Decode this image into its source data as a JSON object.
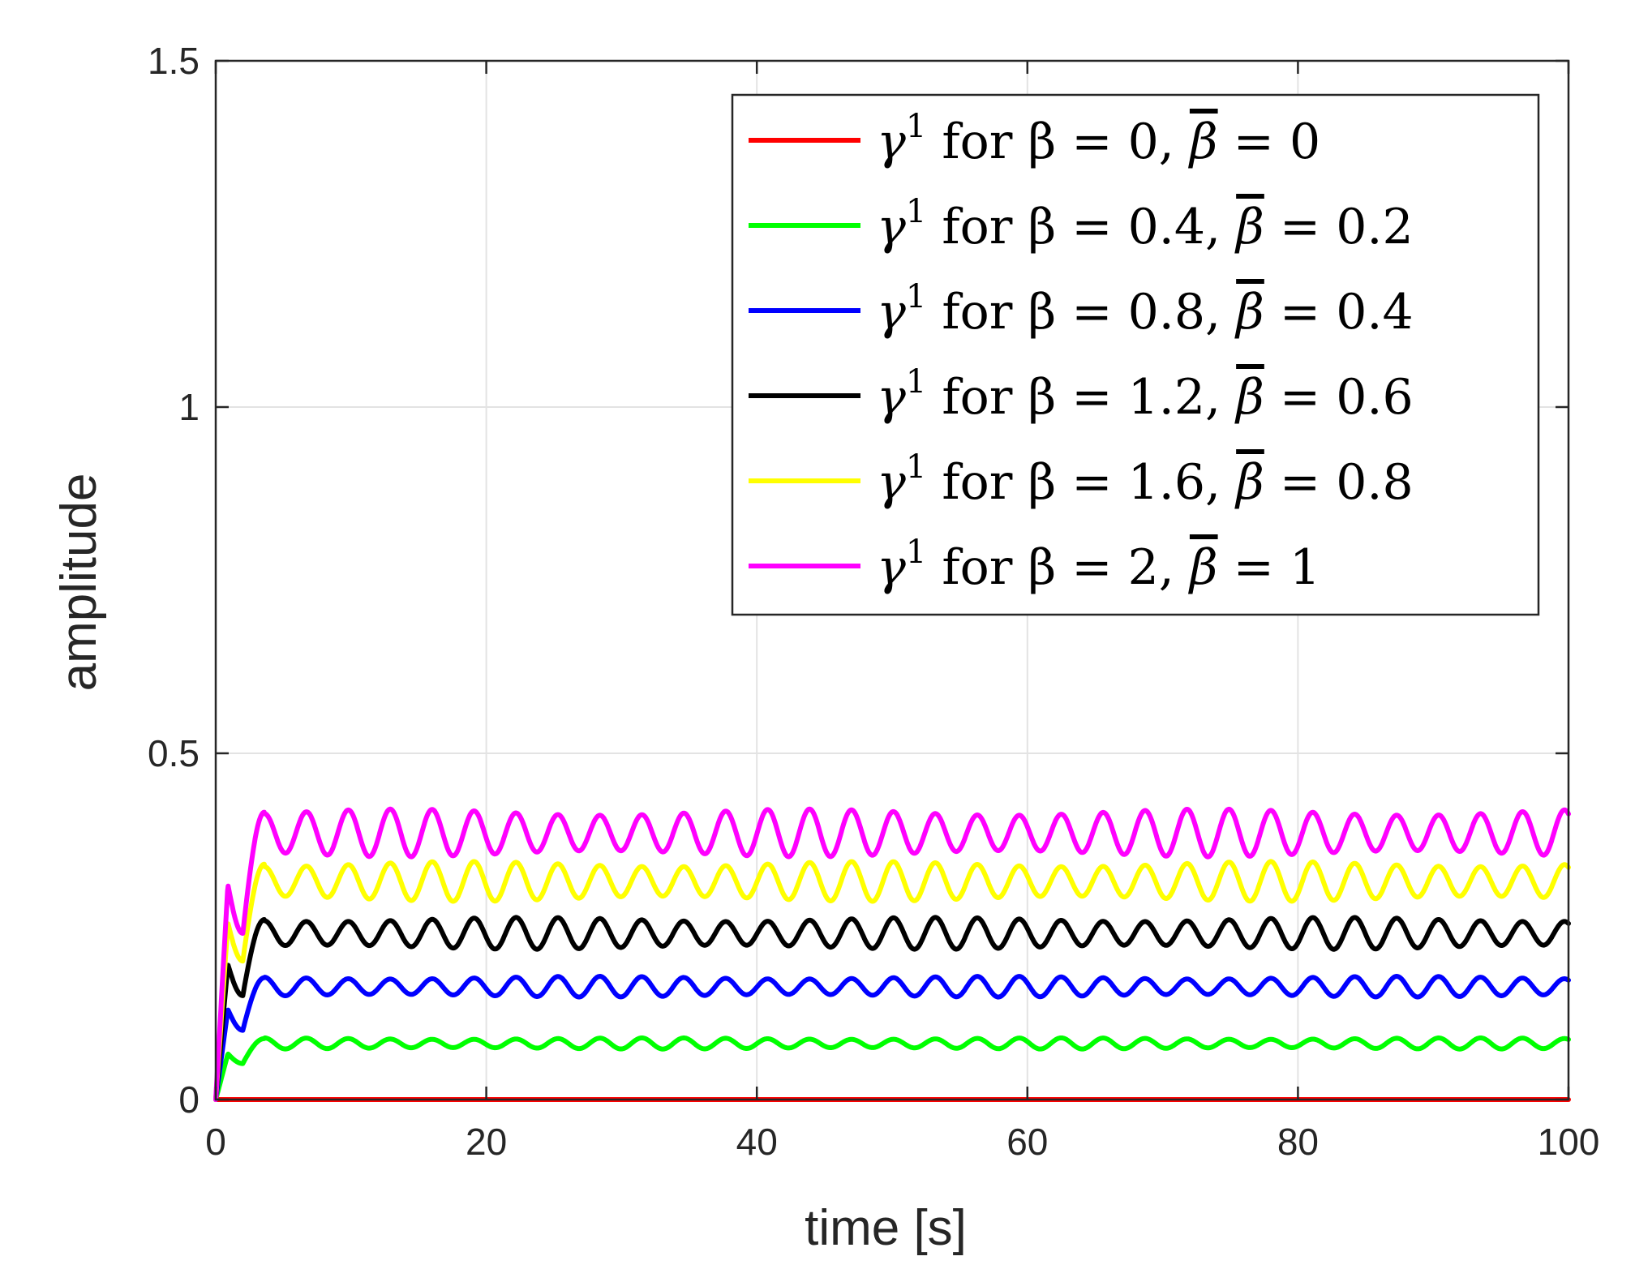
{
  "chart_data": {
    "type": "line",
    "title": "",
    "xlabel": "time [s]",
    "ylabel": "amplitude",
    "xlim": [
      0,
      100
    ],
    "ylim": [
      0,
      1.5
    ],
    "xticks": [
      "0",
      "20",
      "40",
      "60",
      "80",
      "100"
    ],
    "yticks": [
      "0",
      "0.5",
      "1",
      "1.5"
    ],
    "grid": true,
    "legend_position": "top-right",
    "series": [
      {
        "name": "γ1 for β = 0, β̄ = 0",
        "legend": {
          "sym": "γ",
          "sup": "1",
          "mid": " for β = 0, ",
          "beta_bar": "β",
          "tail": " = 0"
        },
        "color": "#ff0000",
        "level": 0.0,
        "osc": 0.0,
        "overshoot": 0.0,
        "dip": 0.0
      },
      {
        "name": "γ1 for β = 0.4, β̄ = 0.2",
        "legend": {
          "sym": "γ",
          "sup": "1",
          "mid": " for β = 0.4, ",
          "beta_bar": "β",
          "tail": " = 0.2"
        },
        "color": "#00ff00",
        "level": 0.081,
        "osc": 0.007,
        "overshoot": 0.066,
        "dip": 0.052
      },
      {
        "name": "γ1 for β = 0.8, β̄ = 0.4",
        "legend": {
          "sym": "γ",
          "sup": "1",
          "mid": " for β = 0.8, ",
          "beta_bar": "β",
          "tail": " = 0.4"
        },
        "color": "#0000ff",
        "level": 0.163,
        "osc": 0.013,
        "overshoot": 0.13,
        "dip": 0.1
      },
      {
        "name": "γ1 for β = 1.2, β̄ = 0.6",
        "legend": {
          "sym": "γ",
          "sup": "1",
          "mid": " for β = 1.2, ",
          "beta_bar": "β",
          "tail": " = 0.6"
        },
        "color": "#000000",
        "level": 0.24,
        "osc": 0.02,
        "overshoot": 0.195,
        "dip": 0.15
      },
      {
        "name": "γ1 for β = 1.6, β̄ = 0.8",
        "legend": {
          "sym": "γ",
          "sup": "1",
          "mid": " for β = 1.6, ",
          "beta_bar": "β",
          "tail": " = 0.8"
        },
        "color": "#ffff00",
        "level": 0.315,
        "osc": 0.025,
        "overshoot": 0.255,
        "dip": 0.2
      },
      {
        "name": "γ1 for β = 2, β̄ = 1",
        "legend": {
          "sym": "γ",
          "sup": "1",
          "mid": " for β = 2, ",
          "beta_bar": "β",
          "tail": " = 1"
        },
        "color": "#ff00ff",
        "level": 0.385,
        "osc": 0.03,
        "overshoot": 0.31,
        "dip": 0.24
      }
    ],
    "oscillation_period": 3.1
  }
}
